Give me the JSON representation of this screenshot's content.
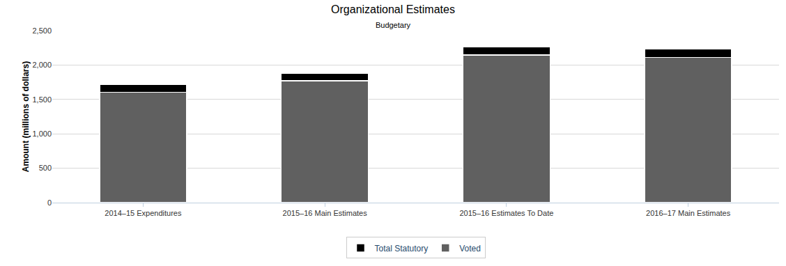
{
  "chart_data": {
    "type": "bar",
    "title": "Organizational Estimates",
    "subtitle": "Budgetary",
    "y_label": "Amount (millions of dollars)",
    "categories": [
      "2014–15 Expenditures",
      "2015–16 Main Estimates",
      "2015–16 Estimates To Date",
      "2016–17 Main Estimates"
    ],
    "series": [
      {
        "name": "Voted",
        "color": "#606060",
        "values": [
          1602,
          1769,
          2148,
          2111
        ]
      },
      {
        "name": "Total Statutory",
        "color": "#000000",
        "values": [
          120,
          111,
          121,
          120
        ]
      }
    ],
    "stacked": true,
    "ylim": [
      0,
      2500
    ],
    "yticks": [
      0,
      500,
      {
        "value": 1000,
        "label": "1,000"
      },
      {
        "value": 1500,
        "label": "1,500"
      },
      {
        "value": 2000,
        "label": "2,000"
      },
      {
        "value": 2500,
        "label": "2,500"
      }
    ],
    "grid": true,
    "legend": "bottom"
  }
}
